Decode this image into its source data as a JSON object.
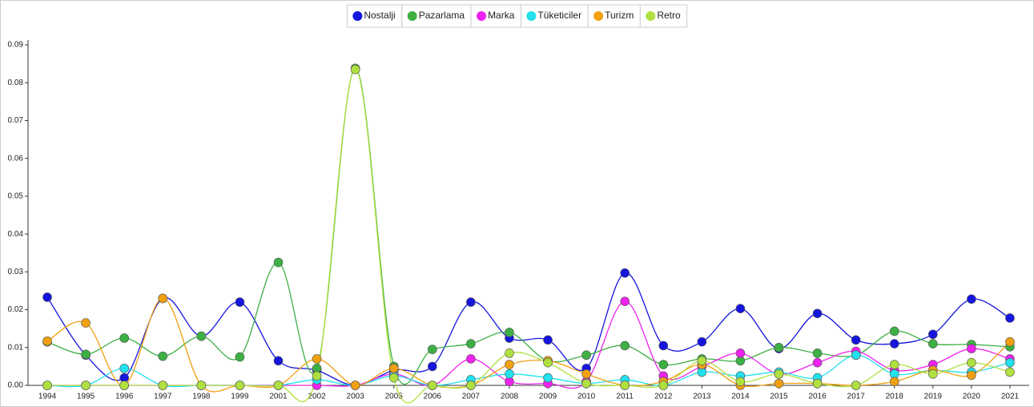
{
  "chart_data": {
    "type": "line",
    "categories": [
      "1994",
      "1995",
      "1996",
      "1997",
      "1998",
      "1999",
      "2001",
      "2002",
      "2003",
      "2005",
      "2006",
      "2007",
      "2008",
      "2009",
      "2010",
      "2011",
      "2012",
      "2013",
      "2014",
      "2015",
      "2016",
      "2017",
      "2018",
      "2019",
      "2020",
      "2021"
    ],
    "series": [
      {
        "name": "Nostalji",
        "color": "#1515dd",
        "values": [
          0.0233,
          0.008,
          0.002,
          0.023,
          0.013,
          0.022,
          0.0065,
          0.004,
          0,
          0.004,
          0.005,
          0.022,
          0.0125,
          0.012,
          0.0045,
          0.0297,
          0.0105,
          0.0115,
          0.0203,
          0.0097,
          0.019,
          0.012,
          0.011,
          0.0135,
          0.0228,
          0.0178
        ]
      },
      {
        "name": "Pazarlama",
        "color": "#3cb043",
        "values": [
          0.0115,
          0.0082,
          0.0125,
          0.0077,
          0.013,
          0.0075,
          0.0325,
          0.0045,
          0.0838,
          0.005,
          0.0095,
          0.011,
          0.014,
          0.0065,
          0.008,
          0.0105,
          0.0055,
          0.007,
          0.0065,
          0.01,
          0.0085,
          0.008,
          0.0143,
          0.011,
          0.0108,
          0.0102
        ]
      },
      {
        "name": "Marka",
        "color": "#ee22ee",
        "values": [
          0,
          0,
          0,
          0,
          0,
          0,
          0,
          0,
          0,
          0.003,
          0,
          0.007,
          0.001,
          0.0005,
          0.001,
          0.0222,
          0.0025,
          0.005,
          0.0085,
          0.003,
          0.006,
          0.009,
          0.004,
          0.0055,
          0.0097,
          0.007
        ]
      },
      {
        "name": "Tüketiciler",
        "color": "#22e0ee",
        "values": [
          0,
          0,
          0.0045,
          0,
          0,
          0,
          0,
          0.0015,
          0,
          0.0025,
          0,
          0.0015,
          0.003,
          0.002,
          0.0005,
          0.0015,
          0,
          0.0035,
          0.0025,
          0.0035,
          0.002,
          0.008,
          0.003,
          0.004,
          0.0035,
          0.006
        ]
      },
      {
        "name": "Turizm",
        "color": "#f0a010",
        "values": [
          0.0117,
          0.0165,
          0,
          0.023,
          0,
          0,
          0,
          0.007,
          0,
          0.0045,
          0,
          0,
          0.0055,
          0.0065,
          0.003,
          0,
          0.001,
          0.0055,
          0,
          0.0005,
          0.0005,
          0,
          0.001,
          0.004,
          0.0027,
          0.0115
        ]
      },
      {
        "name": "Retro",
        "color": "#b0e040",
        "values": [
          0,
          0,
          0,
          0,
          0,
          0,
          0,
          0.0025,
          0.0835,
          0.002,
          0,
          0,
          0.0085,
          0.006,
          0.0005,
          0,
          0,
          0.0065,
          0.001,
          0.003,
          0.0005,
          0,
          0.0055,
          0.003,
          0.006,
          0.0035
        ]
      }
    ],
    "ylim": [
      0,
      0.09
    ],
    "yticks": [
      {
        "value": 0,
        "label": "0.00"
      },
      0.01,
      0.02,
      0.03,
      0.04,
      0.05,
      0.06,
      0.07,
      0.08,
      0.09
    ],
    "legend": "top"
  }
}
